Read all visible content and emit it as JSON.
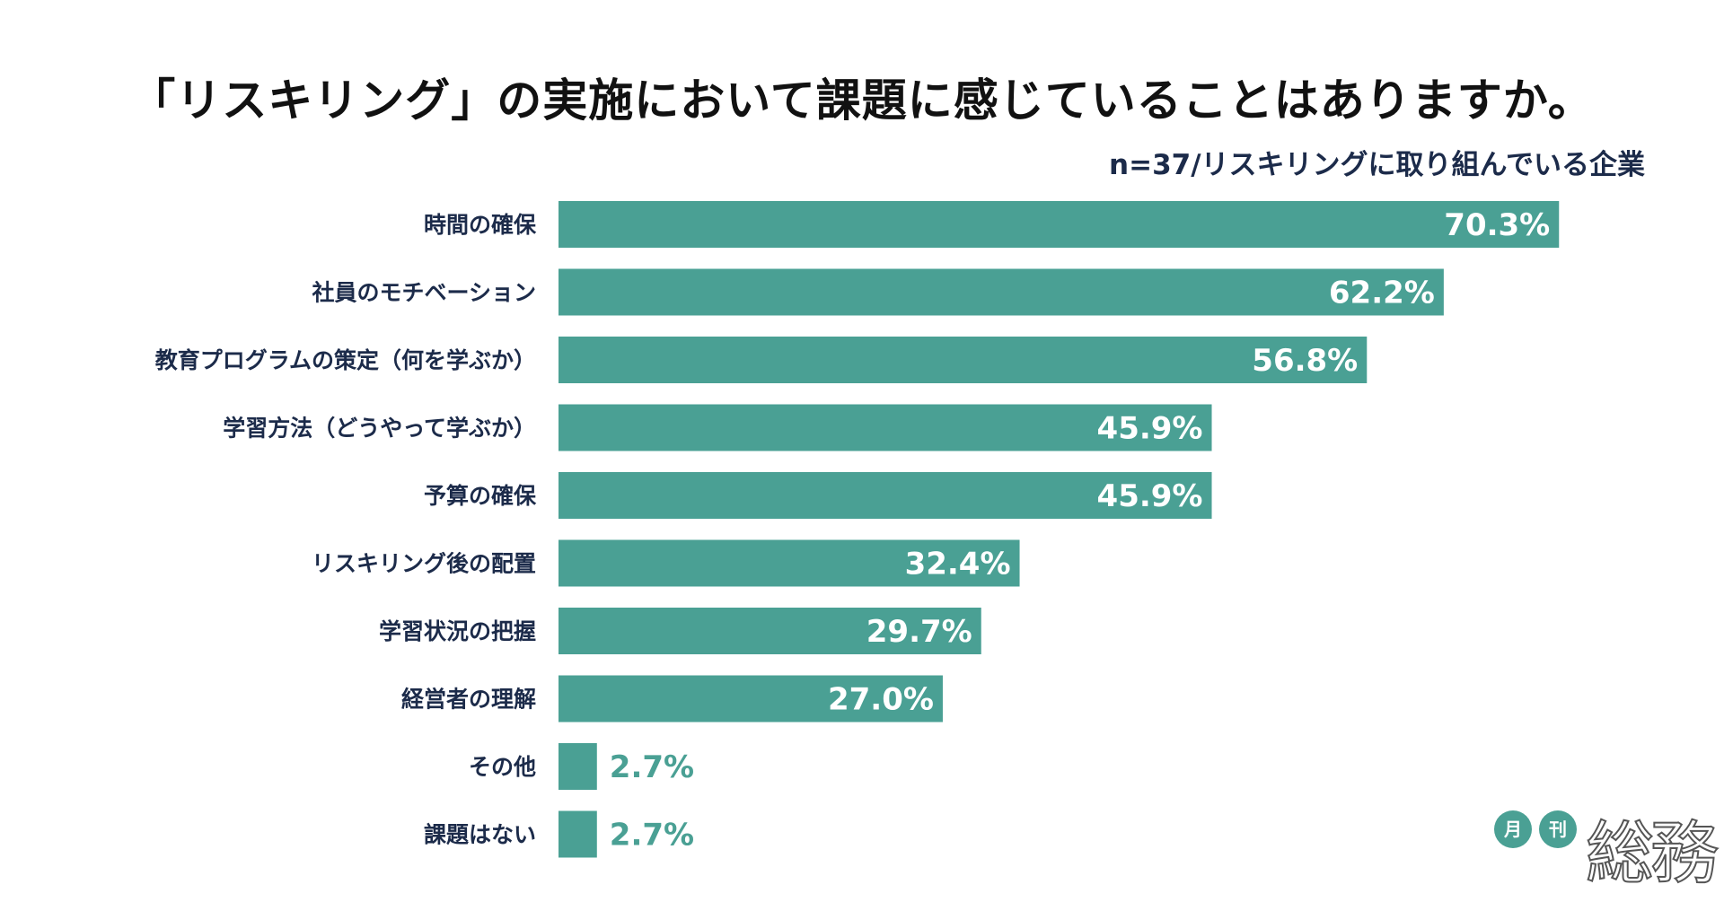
{
  "chart_data": {
    "type": "bar",
    "orientation": "horizontal",
    "title": "「リスキリング」の実施において課題に感じていることはありますか。",
    "subtitle": "n=37/リスキリングに取り組んでいる企業",
    "categories": [
      "時間の確保",
      "社員のモチベーション",
      "教育プログラムの策定（何を学ぶか）",
      "学習方法（どうやって学ぶか）",
      "予算の確保",
      "リスキリング後の配置",
      "学習状況の把握",
      "経営者の理解",
      "その他",
      "課題はない"
    ],
    "values": [
      70.3,
      62.2,
      56.8,
      45.9,
      45.9,
      32.4,
      29.7,
      27.0,
      2.7,
      2.7
    ],
    "value_labels": [
      "70.3%",
      "62.2%",
      "56.8%",
      "45.9%",
      "45.9%",
      "32.4%",
      "29.7%",
      "27.0%",
      "2.7%",
      "2.7%"
    ],
    "unit": "%",
    "xlim": [
      0,
      100
    ],
    "grid": false,
    "legend": "none"
  },
  "colors": {
    "bar": "#4aa094",
    "label": "#1c2b4a",
    "title": "#111111",
    "value_inside": "#ffffff",
    "value_outside": "#4aa094"
  },
  "logo": {
    "badge1": "月",
    "badge2": "刊",
    "word": "総務"
  }
}
